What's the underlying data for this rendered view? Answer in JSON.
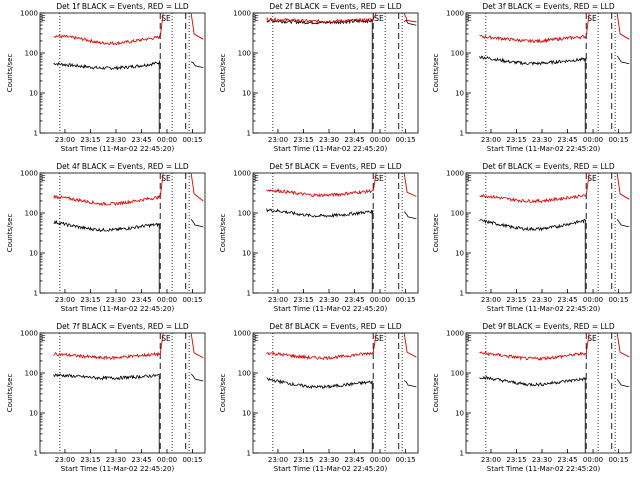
{
  "chart_data": [
    {
      "title": "Det 1f BLACK = Events, RED = LLD",
      "ylabel": "Counts/sec",
      "xlabel": "Start Time (11-Mar-02 22:45:20)",
      "xticks": [
        "23:00",
        "23:15",
        "23:30",
        "23:45",
        "00:00",
        "00:15"
      ],
      "yticks": [
        "1000",
        "100",
        "10",
        "1"
      ],
      "markers": [
        "E",
        "SE"
      ],
      "type": "line",
      "yscale": "log",
      "ylim": [
        1,
        1000
      ],
      "series": [
        {
          "color": "black",
          "level": [
            55,
            50,
            46,
            42,
            42,
            45,
            50,
            58
          ],
          "after": [
            60,
            48
          ]
        },
        {
          "color": "red",
          "level": [
            270,
            250,
            220,
            180,
            175,
            190,
            220,
            250
          ],
          "after": [
            300,
            220
          ]
        }
      ],
      "vlines_dotted": [
        "22:57",
        "00:03",
        "00:13"
      ],
      "vlines_dashed": [
        "23:56",
        "00:11"
      ]
    },
    {
      "title": "Det 2f BLACK = Events, RED = LLD",
      "ylabel": "Counts/sec",
      "xlabel": "Start Time (11-Mar-02 22:45:20)",
      "xticks": [
        "23:00",
        "23:15",
        "23:30",
        "23:45",
        "00:00",
        "00:15"
      ],
      "yticks": [
        "1000",
        "100",
        "10",
        "1"
      ],
      "markers": [
        "E",
        "SE"
      ],
      "type": "line",
      "yscale": "log",
      "ylim": [
        1,
        1000
      ],
      "series": [
        {
          "color": "black",
          "level": [
            650,
            620,
            600,
            580,
            580,
            600,
            620,
            640
          ],
          "after": [
            600,
            550
          ]
        },
        {
          "color": "red",
          "level": [
            700,
            680,
            650,
            620,
            620,
            640,
            660,
            680
          ],
          "after": [
            650,
            600
          ]
        }
      ],
      "vlines_dotted": [
        "22:57",
        "00:03",
        "00:13"
      ],
      "vlines_dashed": [
        "23:56",
        "00:11"
      ]
    },
    {
      "title": "Det 3f BLACK = Events, RED = LLD",
      "ylabel": "Counts/sec",
      "xlabel": "Start Time (11-Mar-02 22:45:20)",
      "xticks": [
        "23:00",
        "23:15",
        "23:30",
        "23:45",
        "00:00",
        "00:15"
      ],
      "yticks": [
        "1000",
        "100",
        "10",
        "1"
      ],
      "markers": [
        "E",
        "SE"
      ],
      "type": "line",
      "yscale": "log",
      "ylim": [
        1,
        1000
      ],
      "series": [
        {
          "color": "black",
          "level": [
            80,
            70,
            60,
            55,
            55,
            60,
            65,
            70
          ],
          "after": [
            85,
            60
          ]
        },
        {
          "color": "red",
          "level": [
            260,
            240,
            220,
            200,
            200,
            220,
            240,
            260
          ],
          "after": [
            300,
            220
          ]
        }
      ],
      "vlines_dotted": [
        "22:57",
        "00:03",
        "00:13"
      ],
      "vlines_dashed": [
        "23:56",
        "00:11"
      ]
    },
    {
      "title": "Det 4f BLACK = Events, RED = LLD",
      "ylabel": "Counts/sec",
      "xlabel": "Start Time (11-Mar-02 22:45:20)",
      "xticks": [
        "23:00",
        "23:15",
        "23:30",
        "23:45",
        "00:00",
        "00:15"
      ],
      "yticks": [
        "1000",
        "100",
        "10",
        "1"
      ],
      "markers": [
        "E",
        "SE"
      ],
      "type": "line",
      "yscale": "log",
      "ylim": [
        1,
        1000
      ],
      "series": [
        {
          "color": "black",
          "level": [
            60,
            50,
            42,
            38,
            38,
            42,
            48,
            52
          ],
          "after": [
            70,
            50
          ]
        },
        {
          "color": "red",
          "level": [
            260,
            230,
            200,
            170,
            170,
            190,
            220,
            250
          ],
          "after": [
            300,
            200
          ]
        }
      ],
      "vlines_dotted": [
        "22:57",
        "00:03",
        "00:13"
      ],
      "vlines_dashed": [
        "23:56",
        "00:11"
      ]
    },
    {
      "title": "Det 5f BLACK = Events, RED = LLD",
      "ylabel": "Counts/sec",
      "xlabel": "Start Time (11-Mar-02 22:45:20)",
      "xticks": [
        "23:00",
        "23:15",
        "23:30",
        "23:45",
        "00:00",
        "00:15"
      ],
      "yticks": [
        "1000",
        "100",
        "10",
        "1"
      ],
      "markers": [
        "E",
        "SE"
      ],
      "type": "line",
      "yscale": "log",
      "ylim": [
        1,
        1000
      ],
      "series": [
        {
          "color": "black",
          "level": [
            120,
            110,
            95,
            85,
            85,
            90,
            100,
            110
          ],
          "after": [
            110,
            80
          ]
        },
        {
          "color": "red",
          "level": [
            380,
            350,
            310,
            280,
            280,
            300,
            330,
            360
          ],
          "after": [
            330,
            260
          ]
        }
      ],
      "vlines_dotted": [
        "22:57",
        "00:03",
        "00:13"
      ],
      "vlines_dashed": [
        "23:56",
        "00:11"
      ]
    },
    {
      "title": "Det 6f BLACK = Events, RED = LLD",
      "ylabel": "Counts/sec",
      "xlabel": "Start Time (11-Mar-02 22:45:20)",
      "xticks": [
        "23:00",
        "23:15",
        "23:30",
        "23:45",
        "00:00",
        "00:15"
      ],
      "yticks": [
        "1000",
        "100",
        "10",
        "1"
      ],
      "markers": [
        "E",
        "SE"
      ],
      "type": "line",
      "yscale": "log",
      "ylim": [
        1,
        1000
      ],
      "series": [
        {
          "color": "black",
          "level": [
            65,
            55,
            45,
            40,
            40,
            45,
            55,
            65
          ],
          "after": [
            70,
            50
          ]
        },
        {
          "color": "red",
          "level": [
            280,
            250,
            220,
            200,
            200,
            220,
            250,
            270
          ],
          "after": [
            300,
            220
          ]
        }
      ],
      "vlines_dotted": [
        "22:57",
        "00:03",
        "00:13"
      ],
      "vlines_dashed": [
        "23:56",
        "00:11"
      ]
    },
    {
      "title": "Det 7f BLACK = Events, RED = LLD",
      "ylabel": "Counts/sec",
      "xlabel": "Start Time (11-Mar-02 22:45:20)",
      "xticks": [
        "23:00",
        "23:15",
        "23:30",
        "23:45",
        "00:00",
        "00:15"
      ],
      "yticks": [
        "1000",
        "100",
        "10",
        "1"
      ],
      "markers": [
        "E",
        "SE"
      ],
      "type": "line",
      "yscale": "log",
      "ylim": [
        1,
        1000
      ],
      "series": [
        {
          "color": "black",
          "level": [
            90,
            85,
            80,
            75,
            75,
            78,
            82,
            88
          ],
          "after": [
            95,
            70
          ]
        },
        {
          "color": "red",
          "level": [
            300,
            280,
            260,
            240,
            240,
            260,
            280,
            300
          ],
          "after": [
            320,
            240
          ]
        }
      ],
      "vlines_dotted": [
        "22:57",
        "00:03",
        "00:13"
      ],
      "vlines_dashed": [
        "23:56",
        "00:11"
      ]
    },
    {
      "title": "Det 8f BLACK = Events, RED = LLD",
      "ylabel": "Counts/sec",
      "xlabel": "Start Time (11-Mar-02 22:45:20)",
      "xticks": [
        "23:00",
        "23:15",
        "23:30",
        "23:45",
        "00:00",
        "00:15"
      ],
      "yticks": [
        "1000",
        "100",
        "10",
        "1"
      ],
      "markers": [
        "E",
        "SE"
      ],
      "type": "line",
      "yscale": "log",
      "ylim": [
        1,
        1000
      ],
      "series": [
        {
          "color": "black",
          "level": [
            70,
            60,
            50,
            45,
            45,
            50,
            55,
            60
          ],
          "after": [
            65,
            50
          ]
        },
        {
          "color": "red",
          "level": [
            320,
            290,
            260,
            240,
            240,
            260,
            290,
            320
          ],
          "after": [
            330,
            250
          ]
        }
      ],
      "vlines_dotted": [
        "22:57",
        "00:03",
        "00:13"
      ],
      "vlines_dashed": [
        "23:56",
        "00:11"
      ]
    },
    {
      "title": "Det 9f BLACK = Events, RED = LLD",
      "ylabel": "Counts/sec",
      "xlabel": "Start Time (11-Mar-02 22:45:20)",
      "xticks": [
        "23:00",
        "23:15",
        "23:30",
        "23:45",
        "00:00",
        "00:15"
      ],
      "yticks": [
        "1000",
        "100",
        "10",
        "1"
      ],
      "markers": [
        "E",
        "SE"
      ],
      "type": "line",
      "yscale": "log",
      "ylim": [
        1,
        1000
      ],
      "series": [
        {
          "color": "black",
          "level": [
            80,
            70,
            60,
            52,
            52,
            58,
            65,
            72
          ],
          "after": [
            70,
            50
          ]
        },
        {
          "color": "red",
          "level": [
            320,
            290,
            260,
            230,
            230,
            250,
            280,
            310
          ],
          "after": [
            330,
            250
          ]
        }
      ],
      "vlines_dotted": [
        "22:57",
        "00:03",
        "00:13"
      ],
      "vlines_dashed": [
        "23:56",
        "00:11"
      ]
    }
  ]
}
